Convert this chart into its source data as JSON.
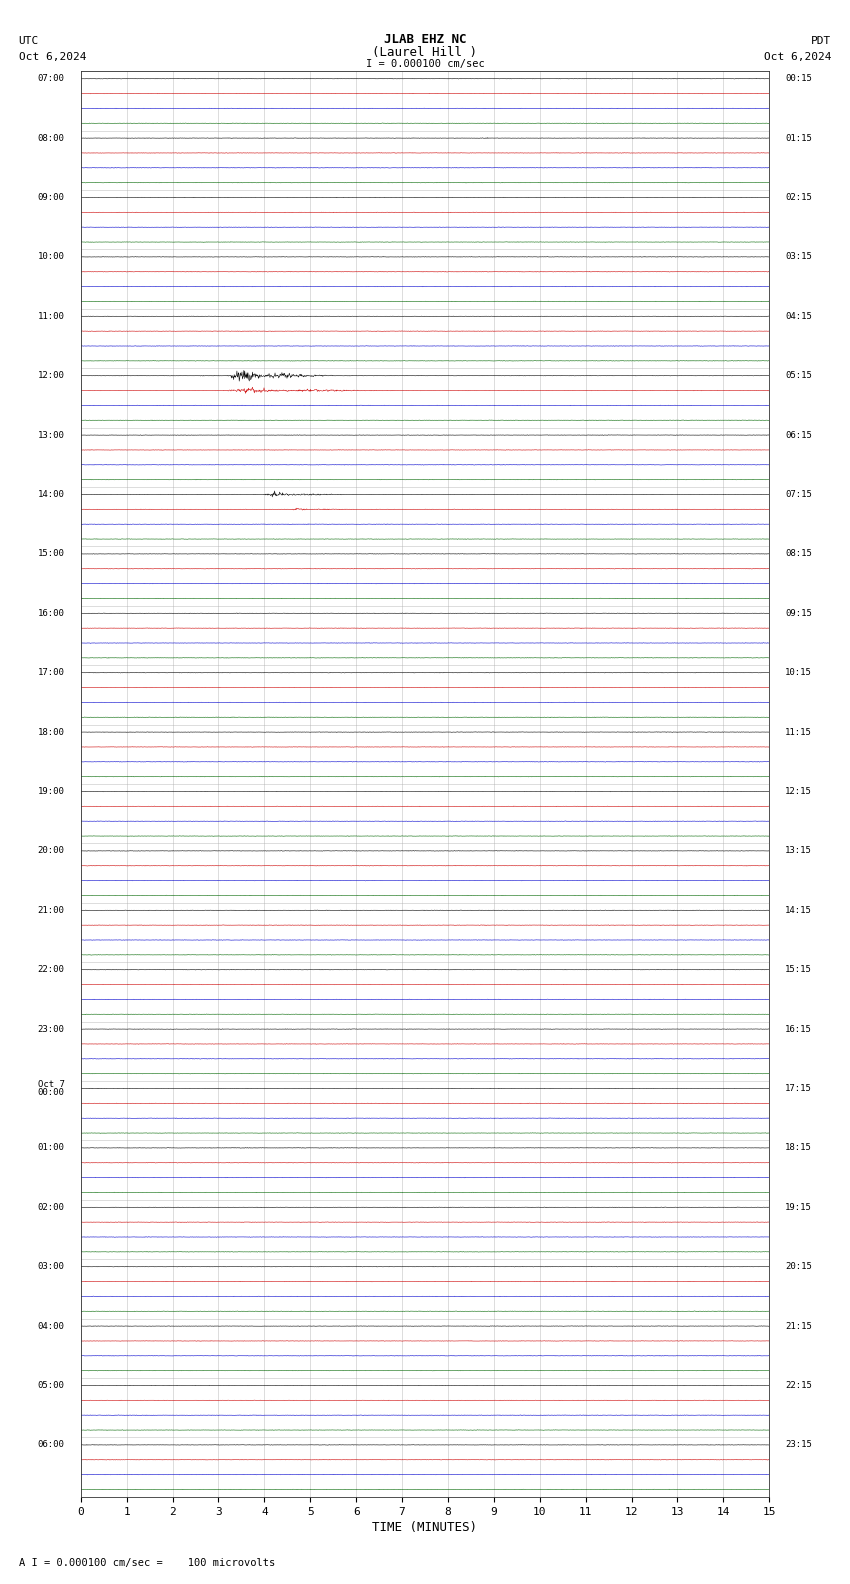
{
  "title_line1": "JLAB EHZ NC",
  "title_line2": "(Laurel Hill )",
  "scale_label": "I = 0.000100 cm/sec",
  "utc_label": "UTC",
  "pdt_label": "PDT",
  "date_left": "Oct 6,2024",
  "date_right": "Oct 6,2024",
  "xlabel": "TIME (MINUTES)",
  "bottom_label": "A I = 0.000100 cm/sec =    100 microvolts",
  "xlim": [
    0,
    15
  ],
  "xticks": [
    0,
    1,
    2,
    3,
    4,
    5,
    6,
    7,
    8,
    9,
    10,
    11,
    12,
    13,
    14,
    15
  ],
  "bg_color": "#ffffff",
  "trace_colors": [
    "#000000",
    "#cc0000",
    "#0000cc",
    "#006600"
  ],
  "num_rows": 96,
  "utc_rows": [
    "07:00",
    "",
    "",
    "",
    "08:00",
    "",
    "",
    "",
    "09:00",
    "",
    "",
    "",
    "10:00",
    "",
    "",
    "",
    "11:00",
    "",
    "",
    "",
    "12:00",
    "",
    "",
    "",
    "13:00",
    "",
    "",
    "",
    "14:00",
    "",
    "",
    "",
    "15:00",
    "",
    "",
    "",
    "16:00",
    "",
    "",
    "",
    "17:00",
    "",
    "",
    "",
    "18:00",
    "",
    "",
    "",
    "19:00",
    "",
    "",
    "",
    "20:00",
    "",
    "",
    "",
    "21:00",
    "",
    "",
    "",
    "22:00",
    "",
    "",
    "",
    "23:00",
    "",
    "",
    "",
    "Oct 7\n00:00",
    "",
    "",
    "",
    "01:00",
    "",
    "",
    "",
    "02:00",
    "",
    "",
    "",
    "03:00",
    "",
    "",
    "",
    "04:00",
    "",
    "",
    "",
    "05:00",
    "",
    "",
    "",
    "06:00",
    "",
    "",
    ""
  ],
  "pdt_rows": [
    "00:15",
    "",
    "",
    "",
    "01:15",
    "",
    "",
    "",
    "02:15",
    "",
    "",
    "",
    "03:15",
    "",
    "",
    "",
    "04:15",
    "",
    "",
    "",
    "05:15",
    "",
    "",
    "",
    "06:15",
    "",
    "",
    "",
    "07:15",
    "",
    "",
    "",
    "08:15",
    "",
    "",
    "",
    "09:15",
    "",
    "",
    "",
    "10:15",
    "",
    "",
    "",
    "11:15",
    "",
    "",
    "",
    "12:15",
    "",
    "",
    "",
    "13:15",
    "",
    "",
    "",
    "14:15",
    "",
    "",
    "",
    "15:15",
    "",
    "",
    "",
    "16:15",
    "",
    "",
    "",
    "17:15",
    "",
    "",
    "",
    "18:15",
    "",
    "",
    "",
    "19:15",
    "",
    "",
    "",
    "20:15",
    "",
    "",
    "",
    "21:15",
    "",
    "",
    "",
    "22:15",
    "",
    "",
    "",
    "23:15",
    "",
    "",
    ""
  ],
  "events": [
    {
      "row": 4,
      "xstart": 8.5,
      "xend": 10.5,
      "amp": 0.18,
      "color": "#000000"
    },
    {
      "row": 17,
      "xstart": 7.5,
      "xend": 9.5,
      "amp": 0.12,
      "color": "#cc0000"
    },
    {
      "row": 20,
      "xstart": 3.2,
      "xend": 5.5,
      "amp": 6.0,
      "color": "#006600"
    },
    {
      "row": 21,
      "xstart": 3.2,
      "xend": 6.5,
      "amp": 2.8,
      "color": "#006600"
    },
    {
      "row": 28,
      "xstart": 4.0,
      "xend": 5.8,
      "amp": 2.2,
      "color": "#0000cc"
    },
    {
      "row": 29,
      "xstart": 4.5,
      "xend": 6.2,
      "amp": 0.9,
      "color": "#0000cc"
    },
    {
      "row": 30,
      "xstart": 4.8,
      "xend": 5.5,
      "amp": 0.3,
      "color": "#0000cc"
    },
    {
      "row": 31,
      "xstart": 7.5,
      "xend": 10.5,
      "amp": 0.12,
      "color": "#000000"
    },
    {
      "row": 25,
      "xstart": 7.0,
      "xend": 7.5,
      "amp": 0.08,
      "color": "#006600"
    },
    {
      "row": 37,
      "xstart": 13.5,
      "xend": 14.0,
      "amp": 0.06,
      "color": "#cc0000"
    },
    {
      "row": 57,
      "xstart": 9.0,
      "xend": 10.0,
      "amp": 0.06,
      "color": "#cc0000"
    },
    {
      "row": 65,
      "xstart": 12.5,
      "xend": 13.5,
      "amp": 0.08,
      "color": "#006600"
    },
    {
      "row": 72,
      "xstart": 3.0,
      "xend": 6.0,
      "amp": 0.15,
      "color": "#000000"
    },
    {
      "row": 81,
      "xstart": 8.5,
      "xend": 9.5,
      "amp": 0.06,
      "color": "#cc0000"
    }
  ],
  "grid_color": "#aaaaaa",
  "noise_base": 0.04
}
